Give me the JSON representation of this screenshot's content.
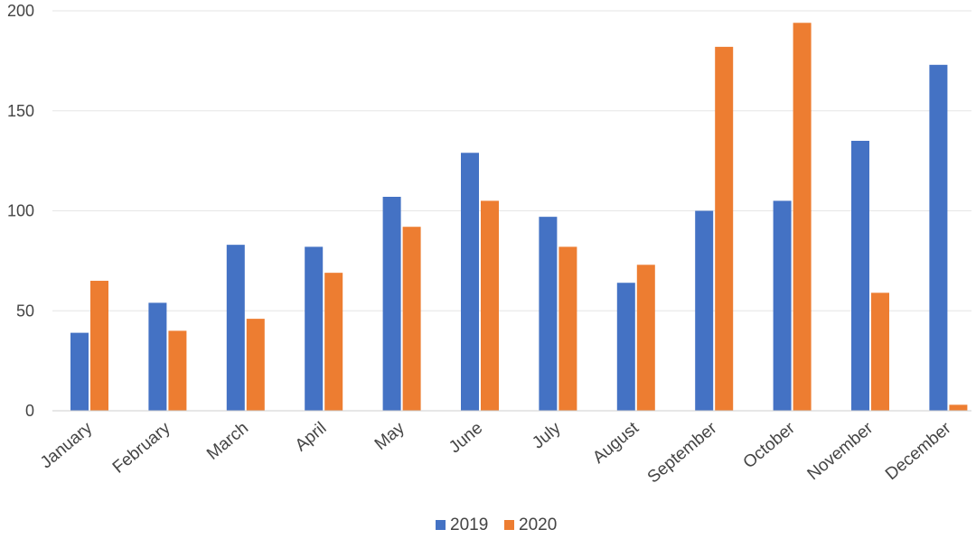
{
  "chart_data": {
    "type": "bar",
    "categories": [
      "January",
      "February",
      "March",
      "April",
      "May",
      "June",
      "July",
      "August",
      "September",
      "October",
      "November",
      "December"
    ],
    "series": [
      {
        "name": "2019",
        "color": "#4472c4",
        "values": [
          39,
          54,
          83,
          82,
          107,
          129,
          97,
          64,
          100,
          105,
          135,
          173
        ]
      },
      {
        "name": "2020",
        "color": "#ed7d31",
        "values": [
          65,
          40,
          46,
          69,
          92,
          105,
          82,
          73,
          182,
          194,
          59,
          3
        ]
      }
    ],
    "ylim": [
      0,
      200
    ],
    "yticks": [
      0,
      50,
      100,
      150,
      200
    ],
    "grid": true,
    "legend": "bottom-center",
    "title": "",
    "xlabel": "",
    "ylabel": ""
  }
}
